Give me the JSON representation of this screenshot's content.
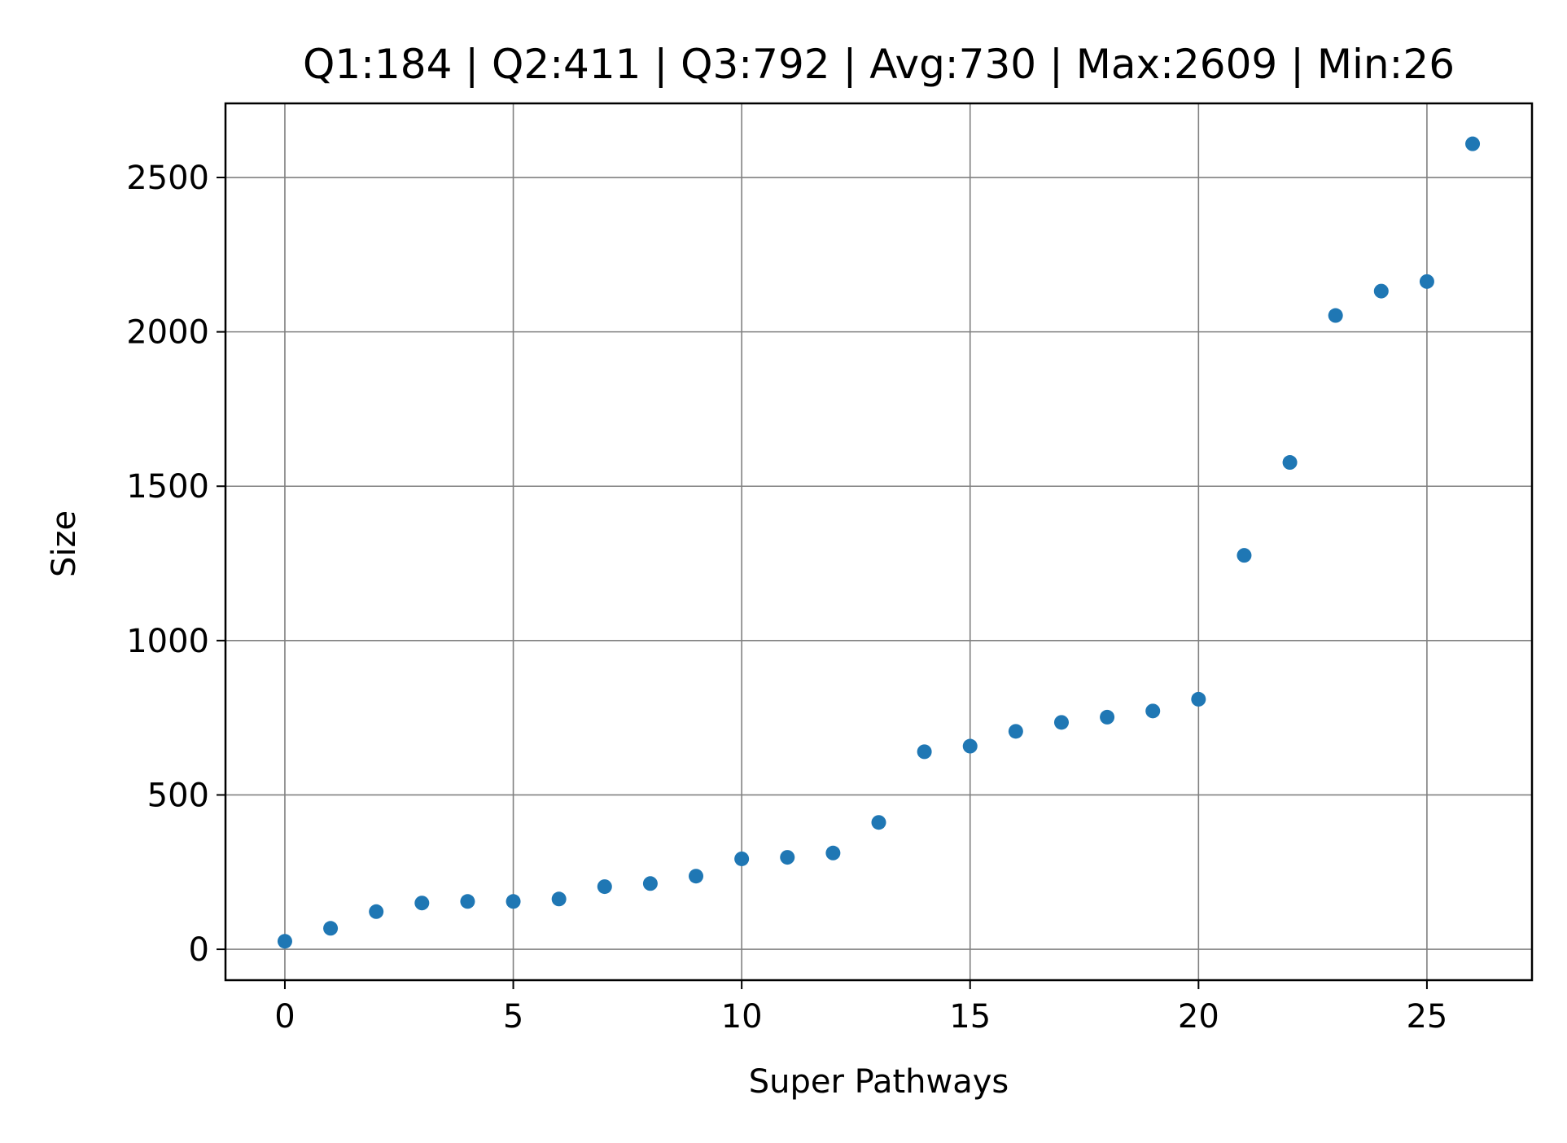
{
  "chart_data": {
    "type": "scatter",
    "title": "Q1:184 | Q2:411 | Q3:792 | Avg:730 | Max:2609 | Min:26",
    "xlabel": "Super Pathways",
    "ylabel": "Size",
    "xlim": [
      -1.3,
      27.3
    ],
    "ylim": [
      -100,
      2740
    ],
    "xticks": [
      0,
      5,
      10,
      15,
      20,
      25
    ],
    "yticks": [
      0,
      500,
      1000,
      1500,
      2000,
      2500
    ],
    "grid": true,
    "marker_color": "#1f77b4",
    "points": [
      {
        "x": 0,
        "y": 26
      },
      {
        "x": 1,
        "y": 68
      },
      {
        "x": 2,
        "y": 122
      },
      {
        "x": 3,
        "y": 150
      },
      {
        "x": 4,
        "y": 155
      },
      {
        "x": 5,
        "y": 155
      },
      {
        "x": 6,
        "y": 163
      },
      {
        "x": 7,
        "y": 203
      },
      {
        "x": 8,
        "y": 213
      },
      {
        "x": 9,
        "y": 237
      },
      {
        "x": 10,
        "y": 293
      },
      {
        "x": 11,
        "y": 298
      },
      {
        "x": 12,
        "y": 312
      },
      {
        "x": 13,
        "y": 411
      },
      {
        "x": 14,
        "y": 640
      },
      {
        "x": 15,
        "y": 658
      },
      {
        "x": 16,
        "y": 706
      },
      {
        "x": 17,
        "y": 735
      },
      {
        "x": 18,
        "y": 752
      },
      {
        "x": 19,
        "y": 772
      },
      {
        "x": 20,
        "y": 810
      },
      {
        "x": 21,
        "y": 1276
      },
      {
        "x": 22,
        "y": 1577
      },
      {
        "x": 23,
        "y": 2053
      },
      {
        "x": 24,
        "y": 2132
      },
      {
        "x": 25,
        "y": 2163
      },
      {
        "x": 26,
        "y": 2609
      }
    ]
  }
}
